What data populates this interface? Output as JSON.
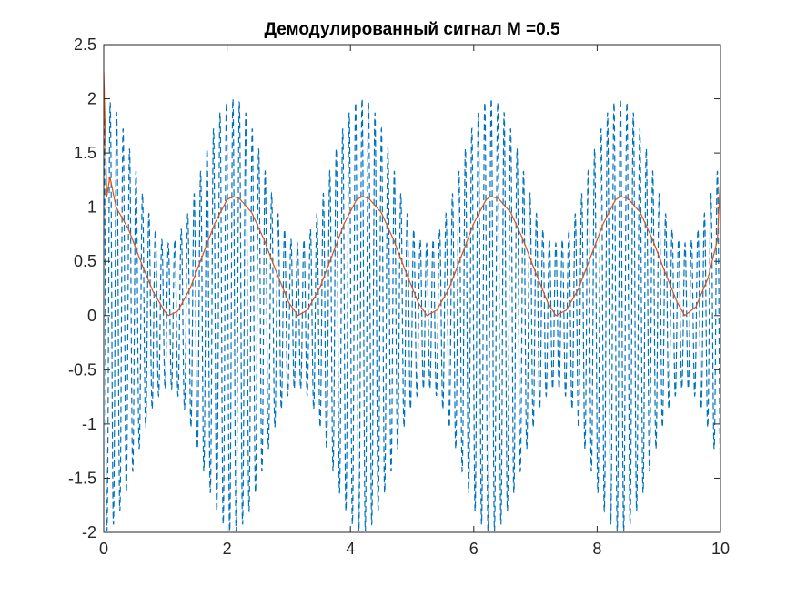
{
  "chart_data": {
    "type": "line",
    "title": "Демодулированный сигнал M =0.5",
    "xlabel": "",
    "ylabel": "",
    "xlim": [
      0,
      10
    ],
    "ylim": [
      -2,
      2.5
    ],
    "x_ticks": [
      0,
      2,
      4,
      6,
      8,
      10
    ],
    "x_tick_labels": [
      "0",
      "2",
      "4",
      "6",
      "8",
      "10"
    ],
    "y_ticks": [
      -2,
      -1.5,
      -1,
      -0.5,
      0,
      0.5,
      1,
      1.5,
      2,
      2.5
    ],
    "y_tick_labels": [
      "-2",
      "-1.5",
      "-1",
      "-0.5",
      "0",
      "0.5",
      "1",
      "1.5",
      "2",
      "2.5"
    ],
    "grid": false,
    "box": true,
    "series": [
      {
        "id": "am-signal",
        "style": "dashed",
        "color": "#0072BD",
        "description_model": "y = (1 + 0.5*cos(3*t)) * cos(60*t) * 1.33, amplitude envelope between 0.67 and 2",
        "envelope_peaks_x": [
          0.0,
          2.09,
          4.19,
          6.28,
          8.38
        ],
        "envelope_max": 2.0,
        "envelope_min": 0.67
      },
      {
        "id": "demodulated",
        "style": "solid",
        "color": "#D95319",
        "x": [
          0.0,
          0.05,
          0.1,
          0.2,
          0.4,
          0.6,
          0.8,
          1.0,
          1.05,
          1.2,
          1.4,
          1.6,
          1.8,
          2.0,
          2.1,
          2.2,
          2.4,
          2.6,
          2.8,
          3.0,
          3.15,
          3.3,
          3.5,
          3.7,
          3.9,
          4.1,
          4.2,
          4.3,
          4.5,
          4.7,
          4.9,
          5.1,
          5.24,
          5.4,
          5.6,
          5.8,
          6.0,
          6.2,
          6.28,
          6.4,
          6.6,
          6.8,
          7.0,
          7.2,
          7.33,
          7.5,
          7.7,
          7.9,
          8.1,
          8.3,
          8.38,
          8.5,
          8.7,
          8.9,
          9.1,
          9.3,
          9.42,
          9.6,
          9.8,
          9.95,
          10.0
        ],
        "y": [
          2.25,
          1.1,
          1.28,
          1.0,
          0.8,
          0.5,
          0.22,
          0.03,
          0.0,
          0.04,
          0.25,
          0.55,
          0.85,
          1.07,
          1.1,
          1.08,
          0.95,
          0.7,
          0.4,
          0.12,
          0.0,
          0.05,
          0.25,
          0.55,
          0.85,
          1.07,
          1.1,
          1.08,
          0.95,
          0.7,
          0.4,
          0.12,
          0.0,
          0.05,
          0.25,
          0.55,
          0.85,
          1.07,
          1.1,
          1.08,
          0.95,
          0.7,
          0.4,
          0.12,
          0.0,
          0.05,
          0.25,
          0.55,
          0.85,
          1.07,
          1.1,
          1.08,
          0.95,
          0.7,
          0.4,
          0.12,
          0.0,
          0.08,
          0.35,
          0.7,
          1.3
        ]
      }
    ]
  }
}
